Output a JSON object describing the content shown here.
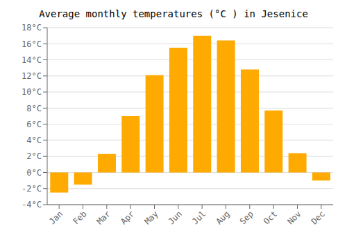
{
  "chart_data": {
    "type": "bar",
    "title": "Average monthly temperatures (°C ) in Jesenice",
    "categories": [
      "Jan",
      "Feb",
      "Mar",
      "Apr",
      "May",
      "Jun",
      "Jul",
      "Aug",
      "Sep",
      "Oct",
      "Nov",
      "Dec"
    ],
    "values": [
      -2.5,
      -1.5,
      2.3,
      7.0,
      12.1,
      15.5,
      17.0,
      16.4,
      12.8,
      7.7,
      2.4,
      -1.0
    ],
    "color": "#FFAA00",
    "ylim": [
      -4,
      18
    ],
    "yticks": [
      {
        "value": -4,
        "label": "-4°C"
      },
      {
        "value": -2,
        "label": "-2°C"
      },
      {
        "value": 0,
        "label": "0°C"
      },
      {
        "value": 2,
        "label": "2°C"
      },
      {
        "value": 4,
        "label": "4°C"
      },
      {
        "value": 6,
        "label": "6°C"
      },
      {
        "value": 8,
        "label": "8°C"
      },
      {
        "value": 10,
        "label": "10°C"
      },
      {
        "value": 12,
        "label": "12°C"
      },
      {
        "value": 14,
        "label": "14°C"
      },
      {
        "value": 16,
        "label": "16°C"
      },
      {
        "value": 18,
        "label": "18°C"
      }
    ],
    "grid": true
  }
}
